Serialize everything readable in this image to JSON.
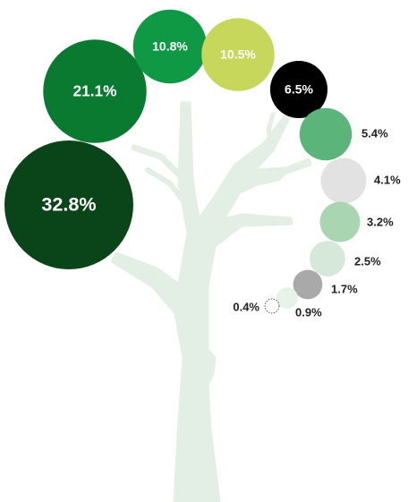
{
  "chart_data": {
    "type": "bubble",
    "values": [
      32.8,
      21.1,
      10.8,
      10.5,
      6.5,
      5.4,
      4.1,
      3.2,
      2.5,
      1.7,
      0.9,
      0.4
    ],
    "value_labels": [
      "32.8%",
      "21.1%",
      "10.8%",
      "10.5%",
      "6.5%",
      "5.4%",
      "4.1%",
      "3.2%",
      "2.5%",
      "1.7%",
      "0.9%",
      "0.4%"
    ],
    "colors": [
      "#0a4419",
      "#0b7a31",
      "#0f9944",
      "#c6d75c",
      "#000000",
      "#5bb57a",
      "#e2e2e2",
      "#a9d5b1",
      "#d5e8d9",
      "#a9a9a9",
      "#e7f2e9",
      "#ffffff"
    ]
  }
}
